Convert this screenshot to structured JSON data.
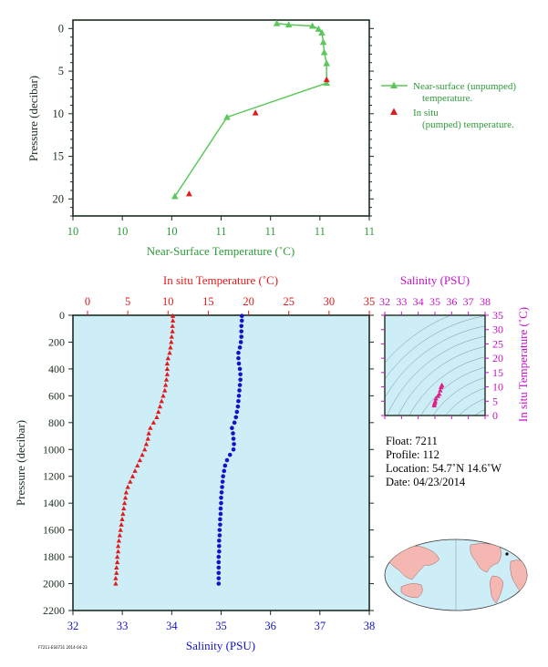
{
  "colors": {
    "green": "#5cc85c",
    "green_text": "#2f9a3a",
    "red": "#e31a1c",
    "blue": "#1313c9",
    "magenta": "#c313c3",
    "panel_bg": "#cdeef7",
    "axis": "#1a2e1f"
  },
  "chart_data": [
    {
      "id": "near_surface",
      "type": "line",
      "xlabel": "Near-Surface Temperature (˚C)",
      "ylabel": "Pressure (decibar)",
      "xticks": [
        "10",
        "10",
        "10",
        "11",
        "11",
        "11",
        "11"
      ],
      "yticks": [
        "0",
        "5",
        "10",
        "15",
        "20"
      ],
      "ylim": [
        0,
        22
      ],
      "y_inverted": true,
      "legend_placement": "right",
      "series": [
        {
          "name": "Near-surface (unpumped) temperature.",
          "marker": "triangle",
          "line": true,
          "points": [
            [
              10.84,
              19.7
            ],
            [
              10.95,
              10.4
            ],
            [
              11.16,
              6.4
            ],
            [
              11.16,
              4.1
            ],
            [
              11.155,
              2.8
            ],
            [
              11.153,
              1.6
            ],
            [
              11.15,
              0.5
            ],
            [
              11.143,
              0.05
            ],
            [
              11.13,
              -0.3
            ],
            [
              11.08,
              -0.45
            ],
            [
              11.055,
              -0.6
            ]
          ]
        },
        {
          "name": "In situ (pumped) temperature.",
          "marker": "triangle",
          "line": false,
          "points": [
            [
              10.87,
              19.4
            ],
            [
              11.01,
              9.9
            ],
            [
              11.16,
              6.0
            ]
          ]
        }
      ]
    },
    {
      "id": "profile",
      "type": "scatter",
      "ylabel": "Pressure (decibar)",
      "top_axis_label": "In situ Temperature (˚C)",
      "bottom_axis_label": "Salinity (PSU)",
      "temp_range": [
        0,
        35
      ],
      "sal_range": [
        32,
        38
      ],
      "ylim": [
        0,
        2200
      ],
      "y_inverted": true,
      "temp_ticks": [
        "0",
        "5",
        "10",
        "15",
        "20",
        "25",
        "30",
        "35"
      ],
      "sal_ticks": [
        "32",
        "33",
        "34",
        "35",
        "36",
        "37",
        "38"
      ],
      "y_ticks": [
        "0",
        "200",
        "400",
        "600",
        "800",
        "1000",
        "1200",
        "1400",
        "1600",
        "1800",
        "2000",
        "2200"
      ],
      "temperature": {
        "pressure": [
          5,
          40,
          80,
          120,
          160,
          200,
          240,
          280,
          320,
          360,
          400,
          440,
          480,
          520,
          560,
          600,
          640,
          680,
          720,
          760,
          800,
          840,
          880,
          920,
          960,
          1000,
          1040,
          1080,
          1120,
          1160,
          1200,
          1240,
          1280,
          1320,
          1360,
          1400,
          1440,
          1480,
          1520,
          1560,
          1600,
          1640,
          1680,
          1720,
          1760,
          1800,
          1840,
          1880,
          1920,
          1960,
          2000
        ],
        "values": [
          10.6,
          10.6,
          10.55,
          10.55,
          10.45,
          10.4,
          10.3,
          10.2,
          10.0,
          9.9,
          9.9,
          9.9,
          9.8,
          9.7,
          9.6,
          9.4,
          9.2,
          9.0,
          8.8,
          8.6,
          8.2,
          7.8,
          7.6,
          7.5,
          7.3,
          7.1,
          6.8,
          6.5,
          6.2,
          5.9,
          5.6,
          5.3,
          5.0,
          4.8,
          4.7,
          4.6,
          4.5,
          4.4,
          4.3,
          4.2,
          4.1,
          4.0,
          3.9,
          3.8,
          3.8,
          3.7,
          3.7,
          3.6,
          3.6,
          3.5,
          3.5
        ]
      },
      "salinity": {
        "pressure": [
          5,
          40,
          80,
          120,
          160,
          200,
          240,
          280,
          320,
          360,
          400,
          440,
          480,
          520,
          560,
          600,
          640,
          680,
          720,
          760,
          800,
          840,
          880,
          920,
          960,
          1000,
          1040,
          1080,
          1120,
          1160,
          1200,
          1240,
          1280,
          1320,
          1360,
          1400,
          1440,
          1480,
          1520,
          1560,
          1600,
          1640,
          1680,
          1720,
          1760,
          1800,
          1840,
          1880,
          1920,
          1960,
          2000
        ],
        "values": [
          35.42,
          35.42,
          35.41,
          35.41,
          35.41,
          35.4,
          35.38,
          35.35,
          35.35,
          35.36,
          35.38,
          35.39,
          35.39,
          35.38,
          35.37,
          35.36,
          35.35,
          35.34,
          35.32,
          35.3,
          35.27,
          35.22,
          35.24,
          35.25,
          35.26,
          35.25,
          35.18,
          35.12,
          35.08,
          35.06,
          35.04,
          35.03,
          35.02,
          35.01,
          35.0,
          35.0,
          34.99,
          34.99,
          34.98,
          34.98,
          34.97,
          34.97,
          34.96,
          34.96,
          34.96,
          34.95,
          34.95,
          34.95,
          34.95,
          34.95,
          34.95
        ]
      }
    },
    {
      "id": "ts_diagram",
      "type": "scatter",
      "xlabel": "Salinity (PSU)",
      "ylabel": "In situ Temperature (˚C)",
      "xlim": [
        32,
        38
      ],
      "ylim": [
        0,
        35
      ],
      "xticks": [
        "32",
        "33",
        "34",
        "35",
        "36",
        "37",
        "38"
      ],
      "yticks": [
        "0",
        "5",
        "10",
        "15",
        "20",
        "25",
        "30",
        "35"
      ],
      "points": [
        [
          35.42,
          10.6
        ],
        [
          35.4,
          10.4
        ],
        [
          35.36,
          9.9
        ],
        [
          35.32,
          8.8
        ],
        [
          35.26,
          7.5
        ],
        [
          35.18,
          6.8
        ],
        [
          35.06,
          5.9
        ],
        [
          35.02,
          5.0
        ],
        [
          34.99,
          4.5
        ],
        [
          34.97,
          4.0
        ],
        [
          34.95,
          3.5
        ]
      ]
    }
  ],
  "info": {
    "float": "Float:  7211",
    "profile": "Profile:  112",
    "location": "Location:  54.7˚N  14.6˚W",
    "date": "Date:  04/23/2014"
  },
  "footer_code": "F7211-ES0731 2014-04-23"
}
